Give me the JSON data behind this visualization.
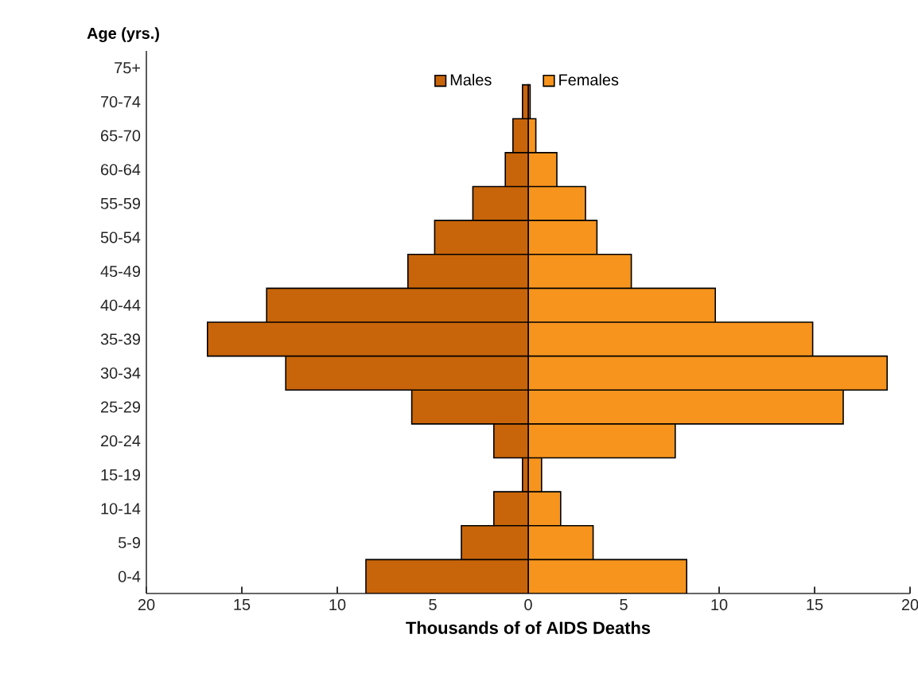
{
  "chart_data": {
    "type": "bar",
    "orientation": "horizontal",
    "xlabel": "Thousands of of AIDS Deaths",
    "ylabel": "Age (yrs.)",
    "categories": [
      "75+",
      "70-74",
      "65-70",
      "60-64",
      "55-59",
      "50-54",
      "45-49",
      "40-44",
      "35-39",
      "30-34",
      "25-29",
      "20-24",
      "15-19",
      "10-14",
      "5-9",
      "0-4"
    ],
    "series": [
      {
        "name": "Males",
        "color": "#c8650a",
        "values": [
          null,
          -0.3,
          -0.8,
          -1.2,
          -2.9,
          -4.9,
          -6.3,
          -13.7,
          -16.8,
          -12.7,
          -6.1,
          -1.8,
          -0.3,
          -1.8,
          -3.5,
          -8.5
        ]
      },
      {
        "name": "Females",
        "color": "#f7941d",
        "values": [
          null,
          0.1,
          0.4,
          1.5,
          3.0,
          3.6,
          5.4,
          9.8,
          14.9,
          18.8,
          16.5,
          7.7,
          0.7,
          1.7,
          3.4,
          8.3
        ]
      }
    ],
    "xlim": [
      -20,
      20
    ],
    "xticks": [
      {
        "value": -20,
        "label": "20"
      },
      {
        "value": -15,
        "label": "15"
      },
      {
        "value": -10,
        "label": "10"
      },
      {
        "value": -5,
        "label": "5"
      },
      0,
      5,
      10,
      15,
      20
    ],
    "legend": "top",
    "stacked": true
  }
}
